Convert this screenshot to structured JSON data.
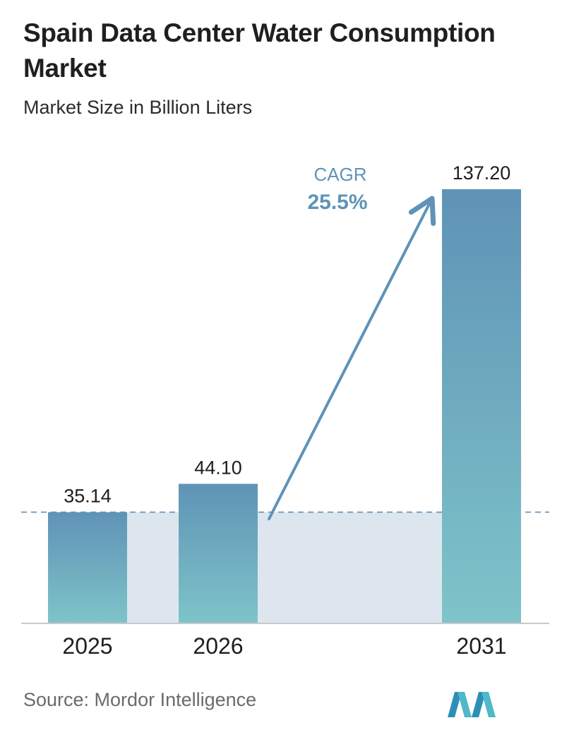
{
  "header": {
    "title": "Spain Data Center Water Consumption Market",
    "subtitle": "Market Size in Billion Liters"
  },
  "chart_data": {
    "type": "bar",
    "title": "Spain Data Center Water Consumption Market",
    "subtitle": "Market Size in Billion Liters",
    "categories": [
      "2025",
      "2026",
      "2031"
    ],
    "values": [
      35.14,
      44.1,
      137.2
    ],
    "value_labels": [
      "35.14",
      "44.10",
      "137.20"
    ],
    "ylim": [
      0,
      137.2
    ],
    "grid": false,
    "annotation": {
      "label": "CAGR",
      "value": "25.5%"
    },
    "colors": {
      "bar_top": "#5f93b6",
      "bar_bottom": "#7ec4c9",
      "band": "#dde6ee",
      "arrow": "#5e93b7",
      "cagr_label": "#5e93b7",
      "baseline_dash": "#5e8fb5"
    }
  },
  "footer": {
    "source": "Source:  Mordor Intelligence",
    "logo_icon": "mordor-intelligence-logo-icon"
  }
}
